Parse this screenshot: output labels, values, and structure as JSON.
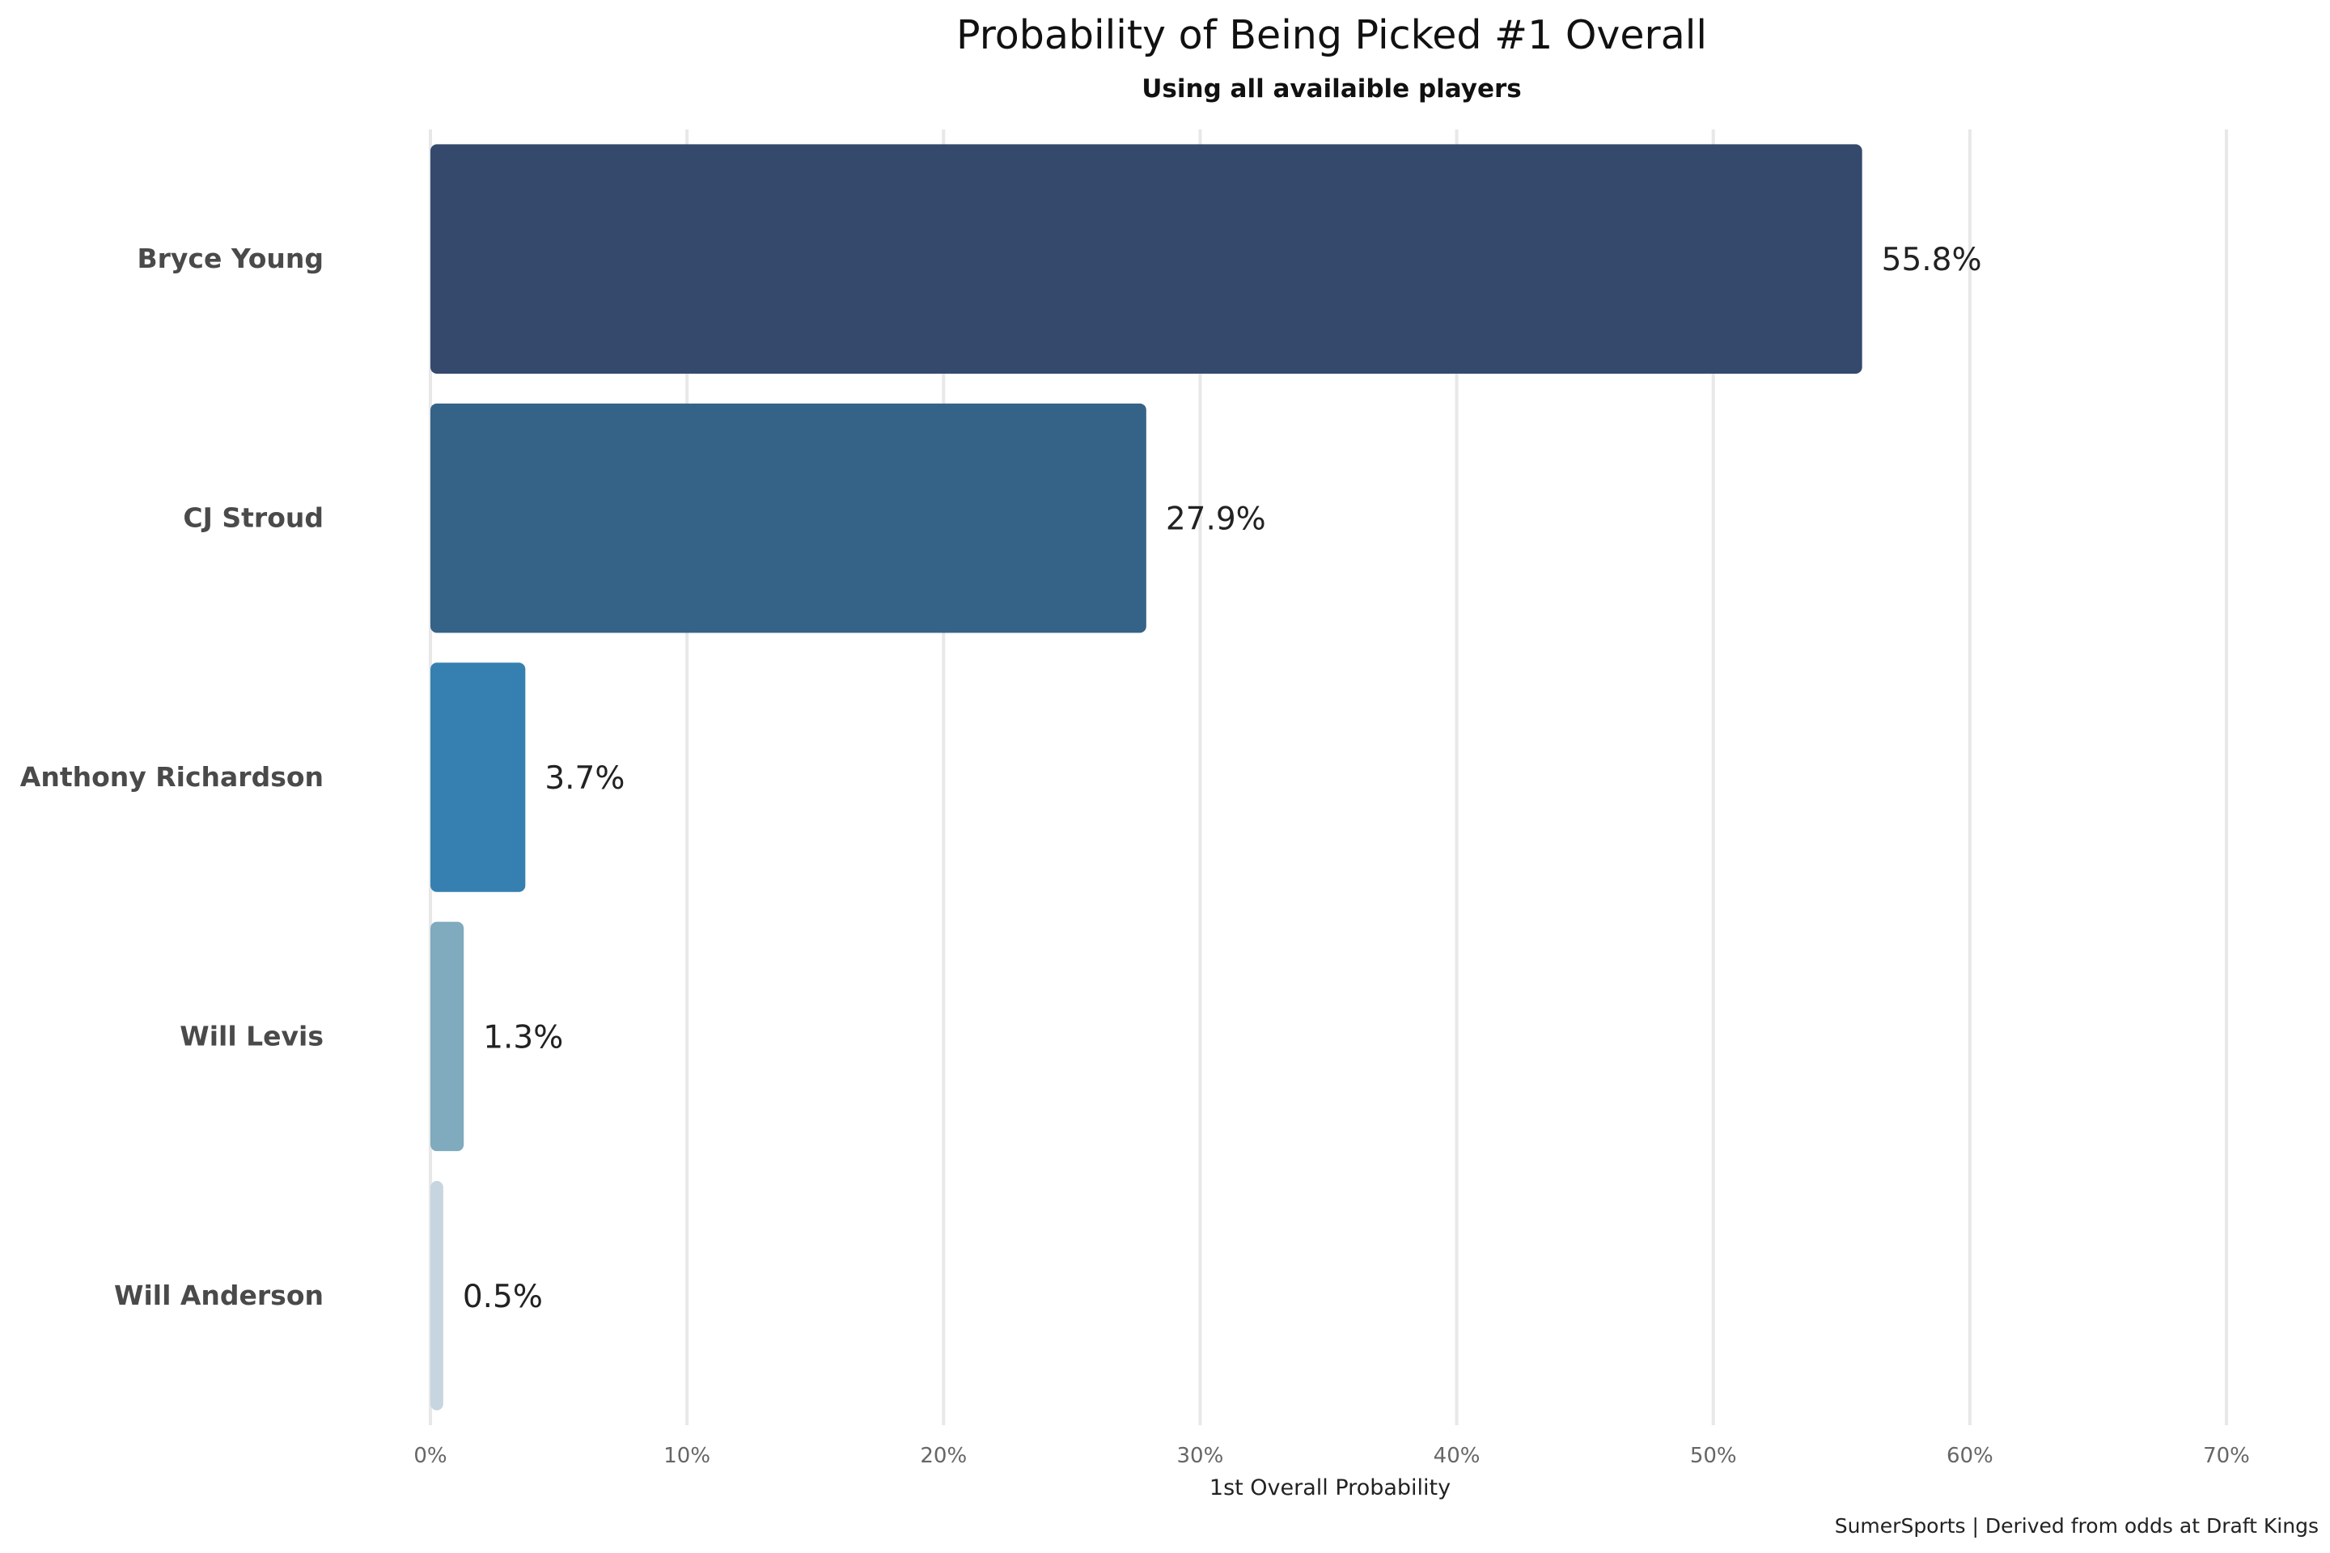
{
  "chart_data": {
    "type": "bar",
    "orientation": "horizontal",
    "title": "Probability of Being Picked #1 Overall",
    "subtitle": "Using all availaible players",
    "xlabel": "1st Overall Probability",
    "ylabel": "",
    "caption": "SumerSports | Derived from odds at Draft Kings",
    "xlim": [
      0,
      70
    ],
    "xticks": [
      0,
      10,
      20,
      30,
      40,
      50,
      60,
      70
    ],
    "xtick_labels": [
      "0%",
      "10%",
      "20%",
      "30%",
      "40%",
      "50%",
      "60%",
      "70%"
    ],
    "grid": true,
    "categories": [
      "Bryce Young",
      "CJ Stroud",
      "Anthony Richardson",
      "Will Levis",
      "Will Anderson"
    ],
    "values": [
      55.8,
      27.9,
      3.7,
      1.3,
      0.5
    ],
    "value_labels": [
      "55.8%",
      "27.9%",
      "3.7%",
      "1.3%",
      "0.5%"
    ],
    "colors": [
      "#34496c",
      "#356388",
      "#3580b0",
      "#80aabe",
      "#c6d5e0"
    ]
  }
}
